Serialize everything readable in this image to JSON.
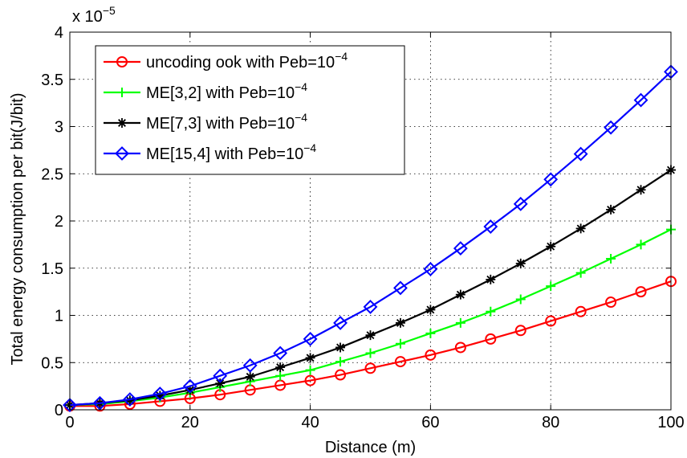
{
  "chart_data": {
    "type": "line",
    "title": "",
    "xlabel": "Distance (m)",
    "ylabel": "Total energy consumption per bit(J/bit)",
    "y_exponent_label": {
      "base": "x 10",
      "exp": "−5"
    },
    "xlim": [
      0,
      100
    ],
    "ylim": [
      0,
      4
    ],
    "xticks": [
      0,
      20,
      40,
      60,
      80,
      100
    ],
    "yticks": [
      0,
      0.5,
      1,
      1.5,
      2,
      2.5,
      3,
      3.5,
      4
    ],
    "ytick_labels": [
      "0",
      "0.5",
      "1",
      "1.5",
      "2",
      "2.5",
      "3",
      "3.5",
      "4"
    ],
    "grid": true,
    "legend_position": "top-left",
    "x": [
      0,
      5,
      10,
      15,
      20,
      25,
      30,
      35,
      40,
      45,
      50,
      55,
      60,
      65,
      70,
      75,
      80,
      85,
      90,
      95,
      100
    ],
    "series": [
      {
        "name": "uncoding ook with Peb=10",
        "name_exp": "−4",
        "color": "#ff0000",
        "marker": "circle",
        "values": [
          0.04,
          0.04,
          0.06,
          0.09,
          0.12,
          0.16,
          0.21,
          0.26,
          0.31,
          0.37,
          0.44,
          0.51,
          0.58,
          0.66,
          0.75,
          0.84,
          0.94,
          1.04,
          1.14,
          1.25,
          1.36
        ]
      },
      {
        "name": "ME[3,2] with Peb=10",
        "name_exp": "−4",
        "color": "#00ff00",
        "marker": "plus",
        "values": [
          0.05,
          0.06,
          0.09,
          0.13,
          0.18,
          0.24,
          0.3,
          0.36,
          0.42,
          0.51,
          0.6,
          0.7,
          0.81,
          0.92,
          1.04,
          1.17,
          1.31,
          1.45,
          1.6,
          1.75,
          1.91
        ]
      },
      {
        "name": "ME[7,3] with Peb=10",
        "name_exp": "−4",
        "color": "#000000",
        "marker": "star",
        "values": [
          0.05,
          0.07,
          0.1,
          0.15,
          0.21,
          0.28,
          0.35,
          0.45,
          0.55,
          0.66,
          0.79,
          0.92,
          1.06,
          1.22,
          1.38,
          1.55,
          1.73,
          1.92,
          2.12,
          2.33,
          2.54
        ]
      },
      {
        "name": "ME[15,4] with Peb=10",
        "name_exp": "−4",
        "color": "#0000ff",
        "marker": "diamond",
        "values": [
          0.05,
          0.07,
          0.11,
          0.17,
          0.25,
          0.36,
          0.47,
          0.6,
          0.75,
          0.92,
          1.09,
          1.29,
          1.49,
          1.71,
          1.94,
          2.18,
          2.44,
          2.71,
          2.99,
          3.28,
          3.58
        ]
      }
    ]
  }
}
